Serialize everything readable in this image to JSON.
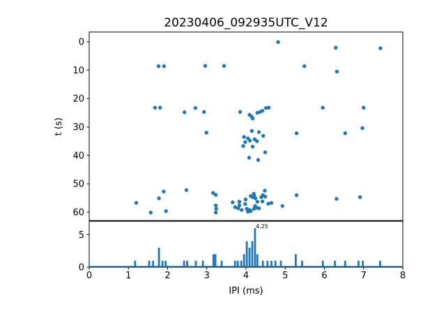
{
  "figure": {
    "title": "20230406_092935UTC_V12",
    "background_color": "#ffffff",
    "accent_color": "#1f77b4",
    "spine_color": "#000000"
  },
  "chart_data": [
    {
      "type": "scatter",
      "title": "20230406_092935UTC_V12",
      "xlabel": "",
      "ylabel": "t (s)",
      "xlim": [
        0,
        8
      ],
      "ylim": [
        62.9,
        -3.4
      ],
      "y_axis_inverted": true,
      "grid": false,
      "yticks": [
        0,
        10,
        20,
        30,
        40,
        50,
        60
      ],
      "marker_color": "#1f77b4",
      "points_xy": [
        [
          4.82,
          0.1
        ],
        [
          6.29,
          2.1
        ],
        [
          7.43,
          2.3
        ],
        [
          1.77,
          8.6
        ],
        [
          1.91,
          8.6
        ],
        [
          2.96,
          8.5
        ],
        [
          3.44,
          8.5
        ],
        [
          5.49,
          8.6
        ],
        [
          6.32,
          10.5
        ],
        [
          1.68,
          23.2
        ],
        [
          1.81,
          23.2
        ],
        [
          2.43,
          24.8
        ],
        [
          2.71,
          23.3
        ],
        [
          2.93,
          24.7
        ],
        [
          3.85,
          24.7
        ],
        [
          4.09,
          25.7
        ],
        [
          4.14,
          26.3
        ],
        [
          4.17,
          27.0
        ],
        [
          4.29,
          25.0
        ],
        [
          4.36,
          24.7
        ],
        [
          4.42,
          24.3
        ],
        [
          4.51,
          23.3
        ],
        [
          4.58,
          23.2
        ],
        [
          5.96,
          23.2
        ],
        [
          7.0,
          23.2
        ],
        [
          2.99,
          32.0
        ],
        [
          4.15,
          31.4
        ],
        [
          4.33,
          31.8
        ],
        [
          4.44,
          33.1
        ],
        [
          5.29,
          32.2
        ],
        [
          6.53,
          32.2
        ],
        [
          6.97,
          30.4
        ],
        [
          3.95,
          33.5
        ],
        [
          4.05,
          34.0
        ],
        [
          4.1,
          34.8
        ],
        [
          3.98,
          35.3
        ],
        [
          4.22,
          34.3
        ],
        [
          4.28,
          35.0
        ],
        [
          3.93,
          36.7
        ],
        [
          4.17,
          36.9
        ],
        [
          4.49,
          38.9
        ],
        [
          4.08,
          40.8
        ],
        [
          4.31,
          41.6
        ],
        [
          1.9,
          52.7
        ],
        [
          2.48,
          52.2
        ],
        [
          3.16,
          53.2
        ],
        [
          3.23,
          53.9
        ],
        [
          5.29,
          54.0
        ],
        [
          6.31,
          55.3
        ],
        [
          6.91,
          54.7
        ],
        [
          1.78,
          55.1
        ],
        [
          1.2,
          56.7
        ],
        [
          1.57,
          60.1
        ],
        [
          1.96,
          59.6
        ],
        [
          3.23,
          57.6
        ],
        [
          3.24,
          58.8
        ],
        [
          3.23,
          60.1
        ],
        [
          3.66,
          56.5
        ],
        [
          3.72,
          58.2
        ],
        [
          3.83,
          56.3
        ],
        [
          3.83,
          57.6
        ],
        [
          3.8,
          58.6
        ],
        [
          3.89,
          59.2
        ],
        [
          3.99,
          55.5
        ],
        [
          3.98,
          57.1
        ],
        [
          4.02,
          58.8
        ],
        [
          4.09,
          59.2
        ],
        [
          4.05,
          59.8
        ],
        [
          4.12,
          59.6
        ],
        [
          4.12,
          54.3
        ],
        [
          4.2,
          53.5
        ],
        [
          4.17,
          54.7
        ],
        [
          4.21,
          54.3
        ],
        [
          4.24,
          55.1
        ],
        [
          4.29,
          56.3
        ],
        [
          4.23,
          57.8
        ],
        [
          4.27,
          58.4
        ],
        [
          4.2,
          58.8
        ],
        [
          4.33,
          58.6
        ],
        [
          4.39,
          54.7
        ],
        [
          4.43,
          54.0
        ],
        [
          4.48,
          52.4
        ],
        [
          4.49,
          54.5
        ],
        [
          4.42,
          56.2
        ],
        [
          4.57,
          57.0
        ],
        [
          4.65,
          56.7
        ],
        [
          4.93,
          57.8
        ]
      ]
    },
    {
      "type": "bar",
      "xlabel": "IPI (ms)",
      "ylabel": "",
      "xlim": [
        0,
        8
      ],
      "ylim": [
        0,
        7.1
      ],
      "grid": false,
      "xticks": [
        0,
        1,
        2,
        3,
        4,
        5,
        6,
        7,
        8
      ],
      "yticks": [
        0,
        5
      ],
      "bin_width": 0.05,
      "bar_color": "#1f77b4",
      "baseline_color": "#1f77b4",
      "bars_x_count": [
        [
          1.17,
          1
        ],
        [
          1.53,
          1
        ],
        [
          1.63,
          1
        ],
        [
          1.78,
          3
        ],
        [
          1.87,
          1
        ],
        [
          1.95,
          1
        ],
        [
          2.42,
          1
        ],
        [
          2.5,
          1
        ],
        [
          2.72,
          1
        ],
        [
          2.9,
          1
        ],
        [
          3.17,
          2
        ],
        [
          3.22,
          2
        ],
        [
          3.38,
          1
        ],
        [
          3.72,
          1
        ],
        [
          3.79,
          1
        ],
        [
          3.88,
          1
        ],
        [
          3.95,
          2
        ],
        [
          4.02,
          4
        ],
        [
          4.09,
          3
        ],
        [
          4.16,
          4
        ],
        [
          4.23,
          6
        ],
        [
          4.29,
          2
        ],
        [
          4.43,
          1
        ],
        [
          4.55,
          1
        ],
        [
          4.65,
          1
        ],
        [
          4.75,
          1
        ],
        [
          4.89,
          1
        ],
        [
          5.27,
          2
        ],
        [
          5.43,
          1
        ],
        [
          5.96,
          1
        ],
        [
          6.27,
          1
        ],
        [
          6.53,
          1
        ],
        [
          6.87,
          1
        ],
        [
          6.98,
          1
        ],
        [
          7.42,
          1
        ]
      ],
      "annotation": {
        "text": "4.25",
        "x": 4.25,
        "y": 6.0
      }
    }
  ]
}
